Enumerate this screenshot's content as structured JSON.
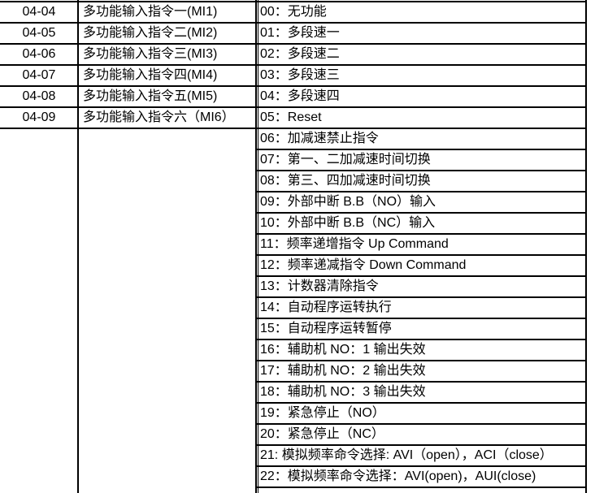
{
  "rows": [
    {
      "code": "04-04",
      "name": "多功能输入指令一(MI1)"
    },
    {
      "code": "04-05",
      "name": "多功能输入指令二(MI2)"
    },
    {
      "code": "04-06",
      "name": "多功能输入指令三(MI3)"
    },
    {
      "code": "04-07",
      "name": "多功能输入指令四(MI4)"
    },
    {
      "code": "04-08",
      "name": "多功能输入指令五(MI5)"
    },
    {
      "code": "04-09",
      "name": "多功能输入指令六（MI6）"
    }
  ],
  "settings": [
    "00：无功能",
    "01：多段速一",
    "02：多段速二",
    "03：多段速三",
    "04：多段速四",
    "05：Reset",
    "06：加减速禁止指令",
    "07：第一、二加减速时间切换",
    "08：第三、四加减速时间切换",
    "09：外部中断 B.B（NO）输入",
    "10：外部中断 B.B（NC）输入",
    "11：频率递增指令 Up Command",
    "12：频率递减指令 Down Command",
    "13：计数器清除指令",
    "14：自动程序运转执行",
    "15：自动程序运转暂停",
    "16：辅助机 NO：1 输出失效",
    "17：辅助机 NO：2 输出失效",
    "18：辅助机 NO：3 输出失效",
    "19：紧急停止（NO）",
    "20：紧急停止（NC）",
    "21: 模拟频率命令选择: AVI（open），ACI（close）",
    "22：模拟频率命令选择：AVI(open)，AUI(close)"
  ]
}
